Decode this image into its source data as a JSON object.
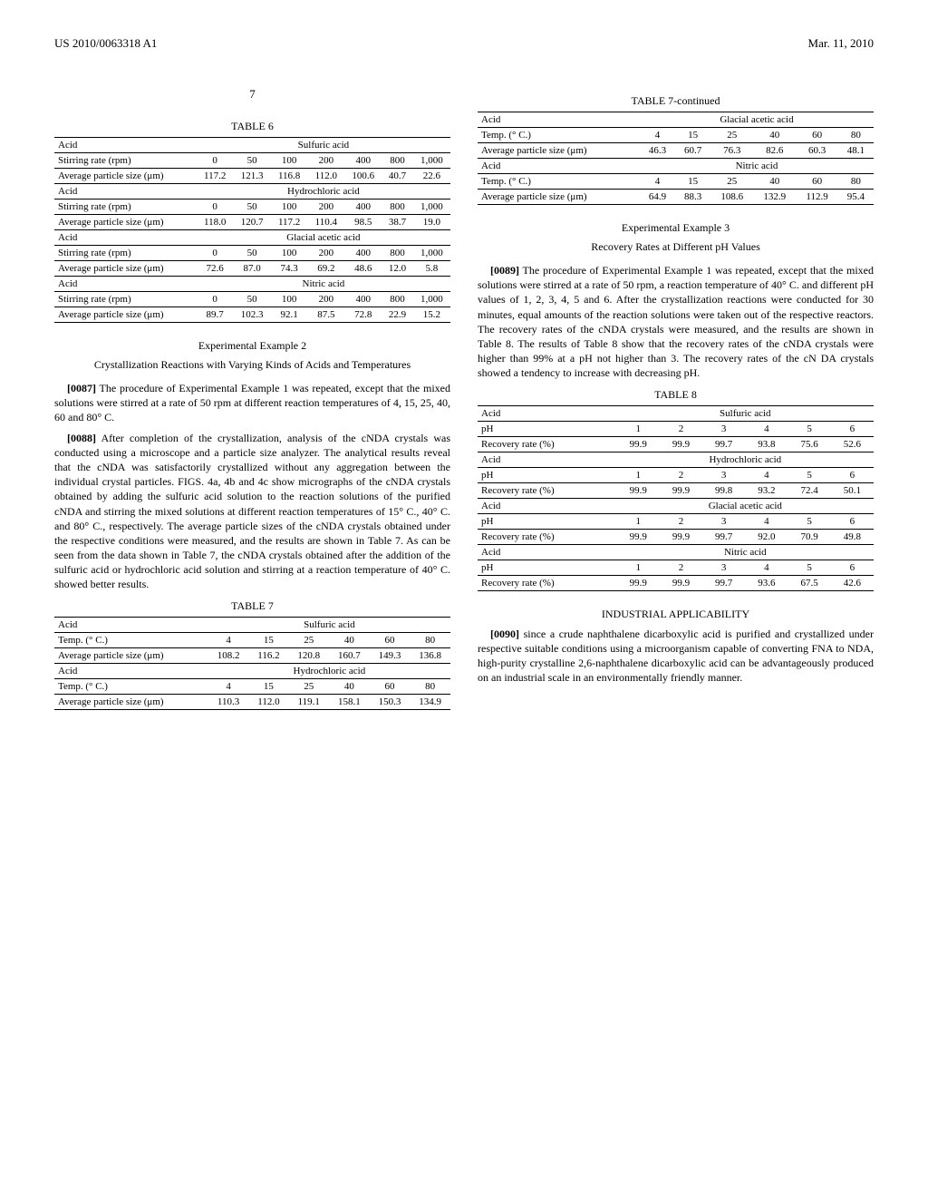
{
  "header": {
    "left": "US 2010/0063318 A1",
    "right": "Mar. 11, 2010"
  },
  "page_num": "7",
  "table6": {
    "caption": "TABLE 6",
    "groups": [
      {
        "acid": "Sulfuric acid",
        "header_label": "Stirring rate (rpm)",
        "cols": [
          "0",
          "50",
          "100",
          "200",
          "400",
          "800",
          "1,000"
        ],
        "row_label": "Average particle size (μm)",
        "values": [
          "117.2",
          "121.3",
          "116.8",
          "112.0",
          "100.6",
          "40.7",
          "22.6"
        ]
      },
      {
        "acid": "Hydrochloric acid",
        "header_label": "Stirring rate (rpm)",
        "cols": [
          "0",
          "50",
          "100",
          "200",
          "400",
          "800",
          "1,000"
        ],
        "row_label": "Average particle size (μm)",
        "values": [
          "118.0",
          "120.7",
          "117.2",
          "110.4",
          "98.5",
          "38.7",
          "19.0"
        ]
      },
      {
        "acid": "Glacial acetic acid",
        "header_label": "Stirring rate (rpm)",
        "cols": [
          "0",
          "50",
          "100",
          "200",
          "400",
          "800",
          "1,000"
        ],
        "row_label": "Average particle size (μm)",
        "values": [
          "72.6",
          "87.0",
          "74.3",
          "69.2",
          "48.6",
          "12.0",
          "5.8"
        ]
      },
      {
        "acid": "Nitric acid",
        "header_label": "Stirring rate (rpm)",
        "cols": [
          "0",
          "50",
          "100",
          "200",
          "400",
          "800",
          "1,000"
        ],
        "row_label": "Average particle size (μm)",
        "values": [
          "89.7",
          "102.3",
          "92.1",
          "87.5",
          "72.8",
          "22.9",
          "15.2"
        ]
      }
    ]
  },
  "exp2": {
    "title": "Experimental Example 2",
    "subtitle": "Crystallization Reactions with Varying Kinds of Acids and Temperatures",
    "p1num": "[0087]",
    "p1": "The procedure of Experimental Example 1 was repeated, except that the mixed solutions were stirred at a rate of 50 rpm at different reaction temperatures of 4, 15, 25, 40, 60 and 80° C.",
    "p2num": "[0088]",
    "p2": "After completion of the crystallization, analysis of the cNDA crystals was conducted using a microscope and a particle size analyzer. The analytical results reveal that the cNDA was satisfactorily crystallized without any aggregation between the individual crystal particles. FIGS. 4a, 4b and 4c show micrographs of the cNDA crystals obtained by adding the sulfuric acid solution to the reaction solutions of the purified cNDA and stirring the mixed solutions at different reaction temperatures of 15° C., 40° C. and 80° C., respectively. The average particle sizes of the cNDA crystals obtained under the respective conditions were measured, and the results are shown in Table 7. As can be seen from the data shown in Table 7, the cNDA crystals obtained after the addition of the sulfuric acid or hydrochloric acid solution and stirring at a reaction temperature of 40° C. showed better results."
  },
  "table7": {
    "caption": "TABLE 7",
    "groups": [
      {
        "acid": "Sulfuric acid",
        "header_label": "Temp. (° C.)",
        "cols": [
          "4",
          "15",
          "25",
          "40",
          "60",
          "80"
        ],
        "row_label": "Average particle size (μm)",
        "values": [
          "108.2",
          "116.2",
          "120.8",
          "160.7",
          "149.3",
          "136.8"
        ]
      },
      {
        "acid": "Hydrochloric acid",
        "header_label": "Temp. (° C.)",
        "cols": [
          "4",
          "15",
          "25",
          "40",
          "60",
          "80"
        ],
        "row_label": "Average particle size (μm)",
        "values": [
          "110.3",
          "112.0",
          "119.1",
          "158.1",
          "150.3",
          "134.9"
        ]
      }
    ]
  },
  "table7cont": {
    "caption": "TABLE 7-continued",
    "groups": [
      {
        "acid": "Glacial acetic acid",
        "header_label": "Temp. (° C.)",
        "cols": [
          "4",
          "15",
          "25",
          "40",
          "60",
          "80"
        ],
        "row_label": "Average particle size (μm)",
        "values": [
          "46.3",
          "60.7",
          "76.3",
          "82.6",
          "60.3",
          "48.1"
        ]
      },
      {
        "acid": "Nitric acid",
        "header_label": "Temp. (° C.)",
        "cols": [
          "4",
          "15",
          "25",
          "40",
          "60",
          "80"
        ],
        "row_label": "Average particle size (μm)",
        "values": [
          "64.9",
          "88.3",
          "108.6",
          "132.9",
          "112.9",
          "95.4"
        ]
      }
    ]
  },
  "exp3": {
    "title": "Experimental Example 3",
    "subtitle": "Recovery Rates at Different pH Values",
    "p1num": "[0089]",
    "p1": "The procedure of Experimental Example 1 was repeated, except that the mixed solutions were stirred at a rate of 50 rpm, a reaction temperature of 40° C. and different pH values of 1, 2, 3, 4, 5 and 6. After the crystallization reactions were conducted for 30 minutes, equal amounts of the reaction solutions were taken out of the respective reactors. The recovery rates of the cNDA crystals were measured, and the results are shown in Table 8. The results of Table 8 show that the recovery rates of the cNDA crystals were higher than 99% at a pH not higher than 3. The recovery rates of the cN DA crystals showed a tendency to increase with decreasing pH."
  },
  "table8": {
    "caption": "TABLE 8",
    "groups": [
      {
        "acid": "Sulfuric acid",
        "header_label": "pH",
        "cols": [
          "1",
          "2",
          "3",
          "4",
          "5",
          "6"
        ],
        "row_label": "Recovery rate (%)",
        "values": [
          "99.9",
          "99.9",
          "99.7",
          "93.8",
          "75.6",
          "52.6"
        ]
      },
      {
        "acid": "Hydrochloric acid",
        "header_label": "pH",
        "cols": [
          "1",
          "2",
          "3",
          "4",
          "5",
          "6"
        ],
        "row_label": "Recovery rate (%)",
        "values": [
          "99.9",
          "99.9",
          "99.8",
          "93.2",
          "72.4",
          "50.1"
        ]
      },
      {
        "acid": "Glacial acetic acid",
        "header_label": "pH",
        "cols": [
          "1",
          "2",
          "3",
          "4",
          "5",
          "6"
        ],
        "row_label": "Recovery rate (%)",
        "values": [
          "99.9",
          "99.9",
          "99.7",
          "92.0",
          "70.9",
          "49.8"
        ]
      },
      {
        "acid": "Nitric acid",
        "header_label": "pH",
        "cols": [
          "1",
          "2",
          "3",
          "4",
          "5",
          "6"
        ],
        "row_label": "Recovery rate (%)",
        "values": [
          "99.9",
          "99.9",
          "99.7",
          "93.6",
          "67.5",
          "42.6"
        ]
      }
    ]
  },
  "industrial": {
    "title": "INDUSTRIAL APPLICABILITY",
    "p1num": "[0090]",
    "p1": "since a crude naphthalene dicarboxylic acid is purified and crystallized under respective suitable conditions using a microorganism capable of converting FNA to NDA, high-purity crystalline 2,6-naphthalene dicarboxylic acid can be advantageously produced on an industrial scale in an environmentally friendly manner."
  },
  "labels": {
    "acid": "Acid"
  }
}
